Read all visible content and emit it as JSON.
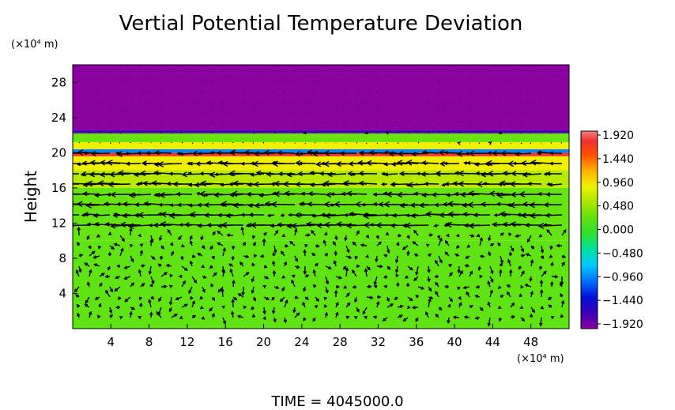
{
  "chart_data": {
    "type": "heatmap",
    "title": "Vertial Potential Temperature Deviation",
    "ylabel": "Height",
    "y_unit": "(×10⁴ m)",
    "x_unit": "(×10⁴ m)",
    "xlim": [
      0,
      52
    ],
    "ylim": [
      0,
      30
    ],
    "x_ticks": [
      4,
      8,
      12,
      16,
      20,
      24,
      28,
      32,
      36,
      40,
      44,
      48
    ],
    "y_ticks": [
      4,
      8,
      12,
      16,
      20,
      24,
      28
    ],
    "colorbar": {
      "ticks": [
        "1.920",
        "1.440",
        "0.960",
        "0.480",
        "0.000",
        "−0.480",
        "−0.960",
        "−1.440",
        "−1.920"
      ],
      "range": [
        -1.92,
        1.92
      ]
    },
    "field_bands": [
      {
        "y0": 0,
        "y1": 10,
        "value": 0.02
      },
      {
        "y0": 10,
        "y1": 16,
        "value": 0.15
      },
      {
        "y0": 16,
        "y1": 18,
        "value": 0.62
      },
      {
        "y0": 18,
        "y1": 19.6,
        "value": 0.9
      },
      {
        "y0": 19.6,
        "y1": 20,
        "value": 1.7
      },
      {
        "y0": 20,
        "y1": 20.4,
        "value": -0.9
      },
      {
        "y0": 20.4,
        "y1": 21.2,
        "value": 0.9
      },
      {
        "y0": 21.2,
        "y1": 22.2,
        "value": 0.2
      },
      {
        "y0": 22.2,
        "y1": 22.6,
        "value": -1.7
      },
      {
        "y0": 22.6,
        "y1": 30,
        "value": -1.92
      }
    ],
    "vector_field": "wind vectors (arrows): strong leftward flow at heights 12–20, weak mixed flow below 10",
    "footer": "TIME  =  4045000.0"
  },
  "colors": {
    "top_layer": "#9400b0",
    "background_field": "#5ee312",
    "arrow": "#000000"
  }
}
